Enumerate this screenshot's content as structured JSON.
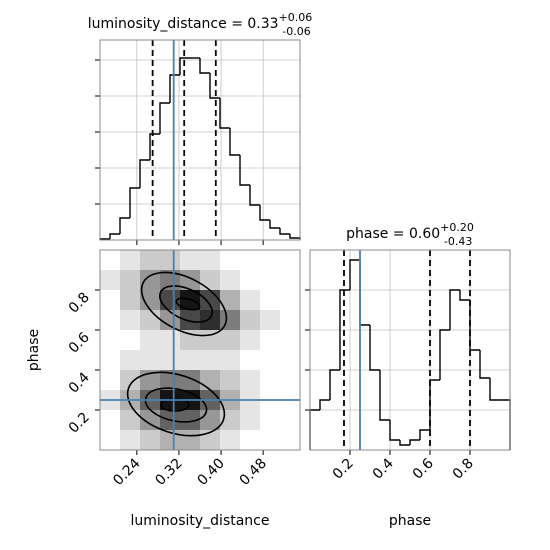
{
  "chart_data": [
    {
      "type": "histogram",
      "title": "luminosity_distance = 0.33",
      "title_plus": "+0.06",
      "title_minus": "-0.06",
      "bins": [
        0.17,
        0.189,
        0.208,
        0.227,
        0.246,
        0.265,
        0.284,
        0.303,
        0.322,
        0.341,
        0.36,
        0.379,
        0.398,
        0.417,
        0.436,
        0.455,
        0.474,
        0.493,
        0.512,
        0.531,
        0.55
      ],
      "values": [
        1,
        6,
        22,
        52,
        80,
        106,
        137,
        165,
        182,
        182,
        167,
        142,
        112,
        85,
        55,
        35,
        20,
        12,
        6,
        2
      ],
      "color": "#000000",
      "xlim": [
        0.17,
        0.55
      ],
      "xticks": [
        0.24,
        0.32,
        {
          "value": 0.4,
          "label": "0.40"
        },
        0.48
      ],
      "ylim": [
        0,
        200
      ],
      "yticks": [
        36,
        72,
        108,
        144,
        180
      ],
      "quantiles": [
        0.27,
        0.33,
        0.39
      ],
      "truth": 0.31,
      "truth_color": "#4682b4",
      "grid": true
    },
    {
      "type": "hist2d",
      "xlabel": "luminosity_distance",
      "ylabel": "phase",
      "xbins": [
        0.17,
        0.208,
        0.246,
        0.284,
        0.322,
        0.36,
        0.398,
        0.436,
        0.474,
        0.512,
        0.55
      ],
      "ybins": [
        0,
        0.1,
        0.2,
        0.3,
        0.4,
        0.5,
        0.6,
        0.7,
        0.8,
        0.9,
        1.0
      ],
      "density": [
        [
          0,
          1,
          2,
          3,
          3,
          2,
          1,
          0,
          0,
          0
        ],
        [
          0,
          2,
          4,
          6,
          6,
          4,
          2,
          1,
          0,
          0
        ],
        [
          1,
          3,
          6,
          9,
          9,
          6,
          3,
          1,
          0,
          0
        ],
        [
          0,
          2,
          4,
          5,
          5,
          3,
          2,
          1,
          0,
          0
        ],
        [
          0,
          1,
          1,
          1,
          1,
          1,
          1,
          0,
          0,
          0
        ],
        [
          0,
          0,
          1,
          1,
          2,
          2,
          2,
          1,
          0,
          0
        ],
        [
          0,
          1,
          2,
          4,
          7,
          8,
          5,
          2,
          1,
          0
        ],
        [
          0,
          2,
          4,
          7,
          9,
          7,
          3,
          1,
          0,
          0
        ],
        [
          1,
          2,
          4,
          5,
          4,
          2,
          1,
          0,
          0,
          0
        ],
        [
          0,
          1,
          2,
          2,
          1,
          1,
          0,
          0,
          0,
          0
        ]
      ],
      "xlim": [
        0.17,
        0.55
      ],
      "ylim": [
        0,
        1
      ],
      "xticks": [
        0.24,
        0.32,
        {
          "value": 0.4,
          "label": "0.40"
        },
        0.48
      ],
      "yticks": [
        0.2,
        0.4,
        0.6,
        0.8
      ],
      "truth": [
        0.31,
        0.25
      ],
      "truth_color": "#4682b4"
    },
    {
      "type": "histogram",
      "title": "phase = 0.60",
      "title_plus": "+0.20",
      "title_minus": "-0.43",
      "xlabel": "phase",
      "bins": [
        0,
        0.05,
        0.1,
        0.15,
        0.2,
        0.25,
        0.3,
        0.35,
        0.4,
        0.45,
        0.5,
        0.55,
        0.6,
        0.65,
        0.7,
        0.75,
        0.8,
        0.85,
        0.9,
        0.95,
        1.0
      ],
      "values": [
        40,
        50,
        80,
        160,
        190,
        125,
        80,
        30,
        10,
        5,
        10,
        20,
        70,
        120,
        160,
        150,
        100,
        72,
        50,
        50
      ],
      "color": "#000000",
      "xlim": [
        0,
        1
      ],
      "xticks": [
        0.2,
        0.4,
        0.6,
        0.8
      ],
      "ylim": [
        0,
        200
      ],
      "yticks": [
        40,
        80,
        120,
        160
      ],
      "quantiles": [
        0.17,
        0.6,
        0.8
      ],
      "truth": 0.25,
      "truth_color": "#4682b4",
      "grid": true
    }
  ]
}
